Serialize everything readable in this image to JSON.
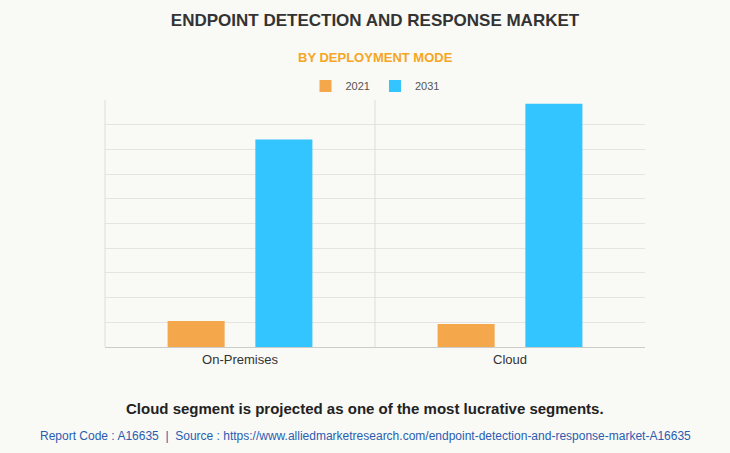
{
  "chart_data": {
    "type": "bar",
    "title": "ENDPOINT DETECTION AND RESPONSE MARKET",
    "subtitle": "BY DEPLOYMENT MODE",
    "categories": [
      "On-Premises",
      "Cloud"
    ],
    "series": [
      {
        "name": "2021",
        "color": "#f4a74b",
        "values": [
          1.05,
          0.93
        ]
      },
      {
        "name": "2031",
        "color": "#33c5ff",
        "values": [
          8.4,
          9.85
        ]
      }
    ],
    "ylim": [
      0,
      10
    ],
    "yticks": [
      0,
      1,
      2,
      3,
      4,
      5,
      6,
      7,
      8,
      9,
      10
    ],
    "grid": true,
    "tick_labels": "x",
    "legend": "top",
    "annotations": [
      "Cloud segment is projected as one of the most lucrative segments.",
      "Report Code : A16635  |  Source : https://www.alliedmarketresearch.com/endpoint-detection-and-response-market-A16635"
    ]
  }
}
